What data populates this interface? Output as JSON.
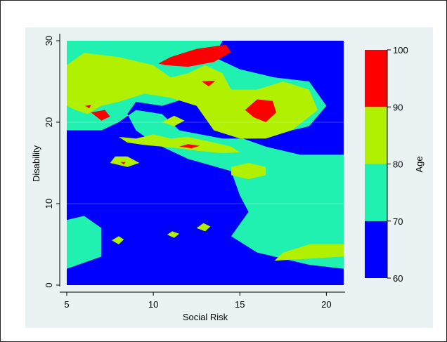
{
  "chart_data": {
    "type": "contour",
    "title": "",
    "xlabel": "Social Risk",
    "ylabel": "Disability",
    "xlim": [
      5,
      21
    ],
    "ylim": [
      0,
      30
    ],
    "x_ticks": [
      5,
      10,
      15,
      20
    ],
    "y_ticks": [
      0,
      10,
      20,
      30
    ],
    "colorbar": {
      "label": "Age",
      "ticks": [
        60,
        70,
        80,
        90,
        100
      ],
      "bins": [
        {
          "range": [
            60,
            70
          ],
          "color": "#0000ff"
        },
        {
          "range": [
            70,
            80
          ],
          "color": "#20f0b0"
        },
        {
          "range": [
            80,
            90
          ],
          "color": "#b0f000"
        },
        {
          "range": [
            90,
            100
          ],
          "color": "#ff0000"
        }
      ]
    },
    "background_level": 70,
    "regions": [
      {
        "level": 60,
        "points": [
          [
            5,
            0
          ],
          [
            21,
            0
          ],
          [
            21,
            2
          ],
          [
            19,
            2.5
          ],
          [
            16,
            4
          ],
          [
            14.5,
            6
          ],
          [
            15.5,
            9
          ],
          [
            15,
            11
          ],
          [
            14.5,
            14
          ],
          [
            12,
            15.5
          ],
          [
            10,
            17.5
          ],
          [
            9,
            19
          ],
          [
            8.5,
            21
          ],
          [
            9,
            22.5
          ],
          [
            10.5,
            22
          ],
          [
            12,
            23
          ],
          [
            13,
            22.5
          ],
          [
            14,
            21
          ],
          [
            14.5,
            18.5
          ],
          [
            16.5,
            17
          ],
          [
            18.5,
            16
          ],
          [
            21,
            16
          ],
          [
            21,
            30
          ],
          [
            14,
            30
          ],
          [
            13.5,
            28
          ],
          [
            15,
            26.5
          ],
          [
            17,
            25.5
          ],
          [
            19,
            25
          ],
          [
            20,
            22
          ],
          [
            19,
            19.5
          ],
          [
            16,
            18
          ],
          [
            14,
            18
          ],
          [
            11.5,
            19
          ],
          [
            10.5,
            21
          ],
          [
            9,
            21.5
          ],
          [
            8,
            20
          ],
          [
            7,
            19
          ],
          [
            5,
            19
          ],
          [
            5,
            8
          ],
          [
            6,
            8.5
          ],
          [
            7,
            7
          ],
          [
            7,
            3.5
          ],
          [
            5,
            2
          ]
        ]
      },
      {
        "level": 60,
        "points": [
          [
            21,
            30
          ],
          [
            21,
            16
          ],
          [
            20,
            20
          ],
          [
            20.5,
            24
          ],
          [
            18.5,
            28
          ],
          [
            16,
            30
          ]
        ]
      },
      {
        "level": 80,
        "points": [
          [
            5,
            27
          ],
          [
            6,
            28.5
          ],
          [
            8,
            28
          ],
          [
            10,
            27
          ],
          [
            11,
            25.5
          ],
          [
            12,
            26
          ],
          [
            13,
            27
          ],
          [
            14,
            26
          ],
          [
            14.5,
            24
          ],
          [
            16,
            24
          ],
          [
            17.5,
            25
          ],
          [
            19,
            24
          ],
          [
            19.5,
            21.5
          ],
          [
            18,
            19
          ],
          [
            16.5,
            18
          ],
          [
            15,
            18
          ],
          [
            13.5,
            19
          ],
          [
            12.5,
            22
          ],
          [
            11,
            23
          ],
          [
            9.5,
            23.5
          ],
          [
            8,
            22.5
          ],
          [
            7,
            22
          ],
          [
            6.2,
            21
          ],
          [
            5.5,
            21.5
          ],
          [
            5,
            22
          ]
        ]
      },
      {
        "level": 80,
        "points": [
          [
            8,
            18.2
          ],
          [
            9,
            18
          ],
          [
            10,
            18.5
          ],
          [
            11,
            18
          ],
          [
            12,
            18.2
          ],
          [
            13.5,
            17.5
          ],
          [
            14.5,
            17
          ],
          [
            15,
            16.3
          ],
          [
            14,
            16.2
          ],
          [
            12.5,
            16.5
          ],
          [
            11.5,
            16.8
          ],
          [
            10.5,
            17
          ],
          [
            9.5,
            17.2
          ],
          [
            8.5,
            17.5
          ]
        ]
      },
      {
        "level": 80,
        "points": [
          [
            10.5,
            20
          ],
          [
            11.2,
            19.5
          ],
          [
            11.8,
            20.2
          ],
          [
            11.2,
            20.8
          ]
        ]
      },
      {
        "level": 80,
        "points": [
          [
            14.5,
            13.5
          ],
          [
            15.5,
            13
          ],
          [
            16.5,
            13.5
          ],
          [
            16.5,
            14.5
          ],
          [
            15.5,
            15
          ],
          [
            14.5,
            14.5
          ]
        ]
      },
      {
        "level": 80,
        "points": [
          [
            7.5,
            15
          ],
          [
            8.5,
            14.5
          ],
          [
            9.2,
            15
          ],
          [
            8.5,
            15.8
          ],
          [
            7.8,
            15.8
          ]
        ]
      },
      {
        "level": 80,
        "points": [
          [
            17,
            3
          ],
          [
            21,
            3.5
          ],
          [
            21,
            5
          ],
          [
            19,
            5
          ],
          [
            17.5,
            4
          ]
        ]
      },
      {
        "level": 80,
        "points": [
          [
            7.6,
            5.5
          ],
          [
            8,
            5
          ],
          [
            8.3,
            5.6
          ],
          [
            8,
            6
          ]
        ]
      },
      {
        "level": 80,
        "points": [
          [
            10.8,
            6.2
          ],
          [
            11.2,
            5.8
          ],
          [
            11.5,
            6.3
          ],
          [
            11.1,
            6.6
          ]
        ]
      },
      {
        "level": 80,
        "points": [
          [
            12.5,
            7
          ],
          [
            13,
            6.6
          ],
          [
            13.3,
            7.2
          ],
          [
            12.9,
            7.6
          ]
        ]
      },
      {
        "level": 90,
        "points": [
          [
            10.3,
            27.2
          ],
          [
            11,
            28
          ],
          [
            12.5,
            29
          ],
          [
            14.2,
            29.5
          ],
          [
            14.5,
            28.6
          ],
          [
            13.5,
            27.4
          ],
          [
            12,
            26.8
          ],
          [
            10.7,
            27
          ]
        ]
      },
      {
        "level": 90,
        "points": [
          [
            15.3,
            21.5
          ],
          [
            15.8,
            20.6
          ],
          [
            16.5,
            20
          ],
          [
            17.1,
            21.2
          ],
          [
            16.9,
            22.6
          ],
          [
            16,
            22.8
          ]
        ]
      },
      {
        "level": 90,
        "points": [
          [
            6.4,
            21.2
          ],
          [
            7,
            20.2
          ],
          [
            7.5,
            20.7
          ],
          [
            7.2,
            21.5
          ]
        ]
      },
      {
        "level": 90,
        "points": [
          [
            6.05,
            22
          ],
          [
            6.3,
            21.7
          ],
          [
            6.4,
            22.1
          ]
        ]
      },
      {
        "level": 90,
        "points": [
          [
            12.8,
            25
          ],
          [
            13.2,
            24.4
          ],
          [
            13.6,
            25.1
          ]
        ]
      },
      {
        "level": 90,
        "points": [
          [
            11.5,
            17
          ],
          [
            12.2,
            16.8
          ],
          [
            12.7,
            17.1
          ],
          [
            12,
            17.3
          ]
        ]
      },
      {
        "level": 90,
        "points": [
          [
            8.1,
            15.1
          ],
          [
            8.3,
            14.8
          ],
          [
            8.4,
            15.1
          ]
        ]
      }
    ]
  }
}
